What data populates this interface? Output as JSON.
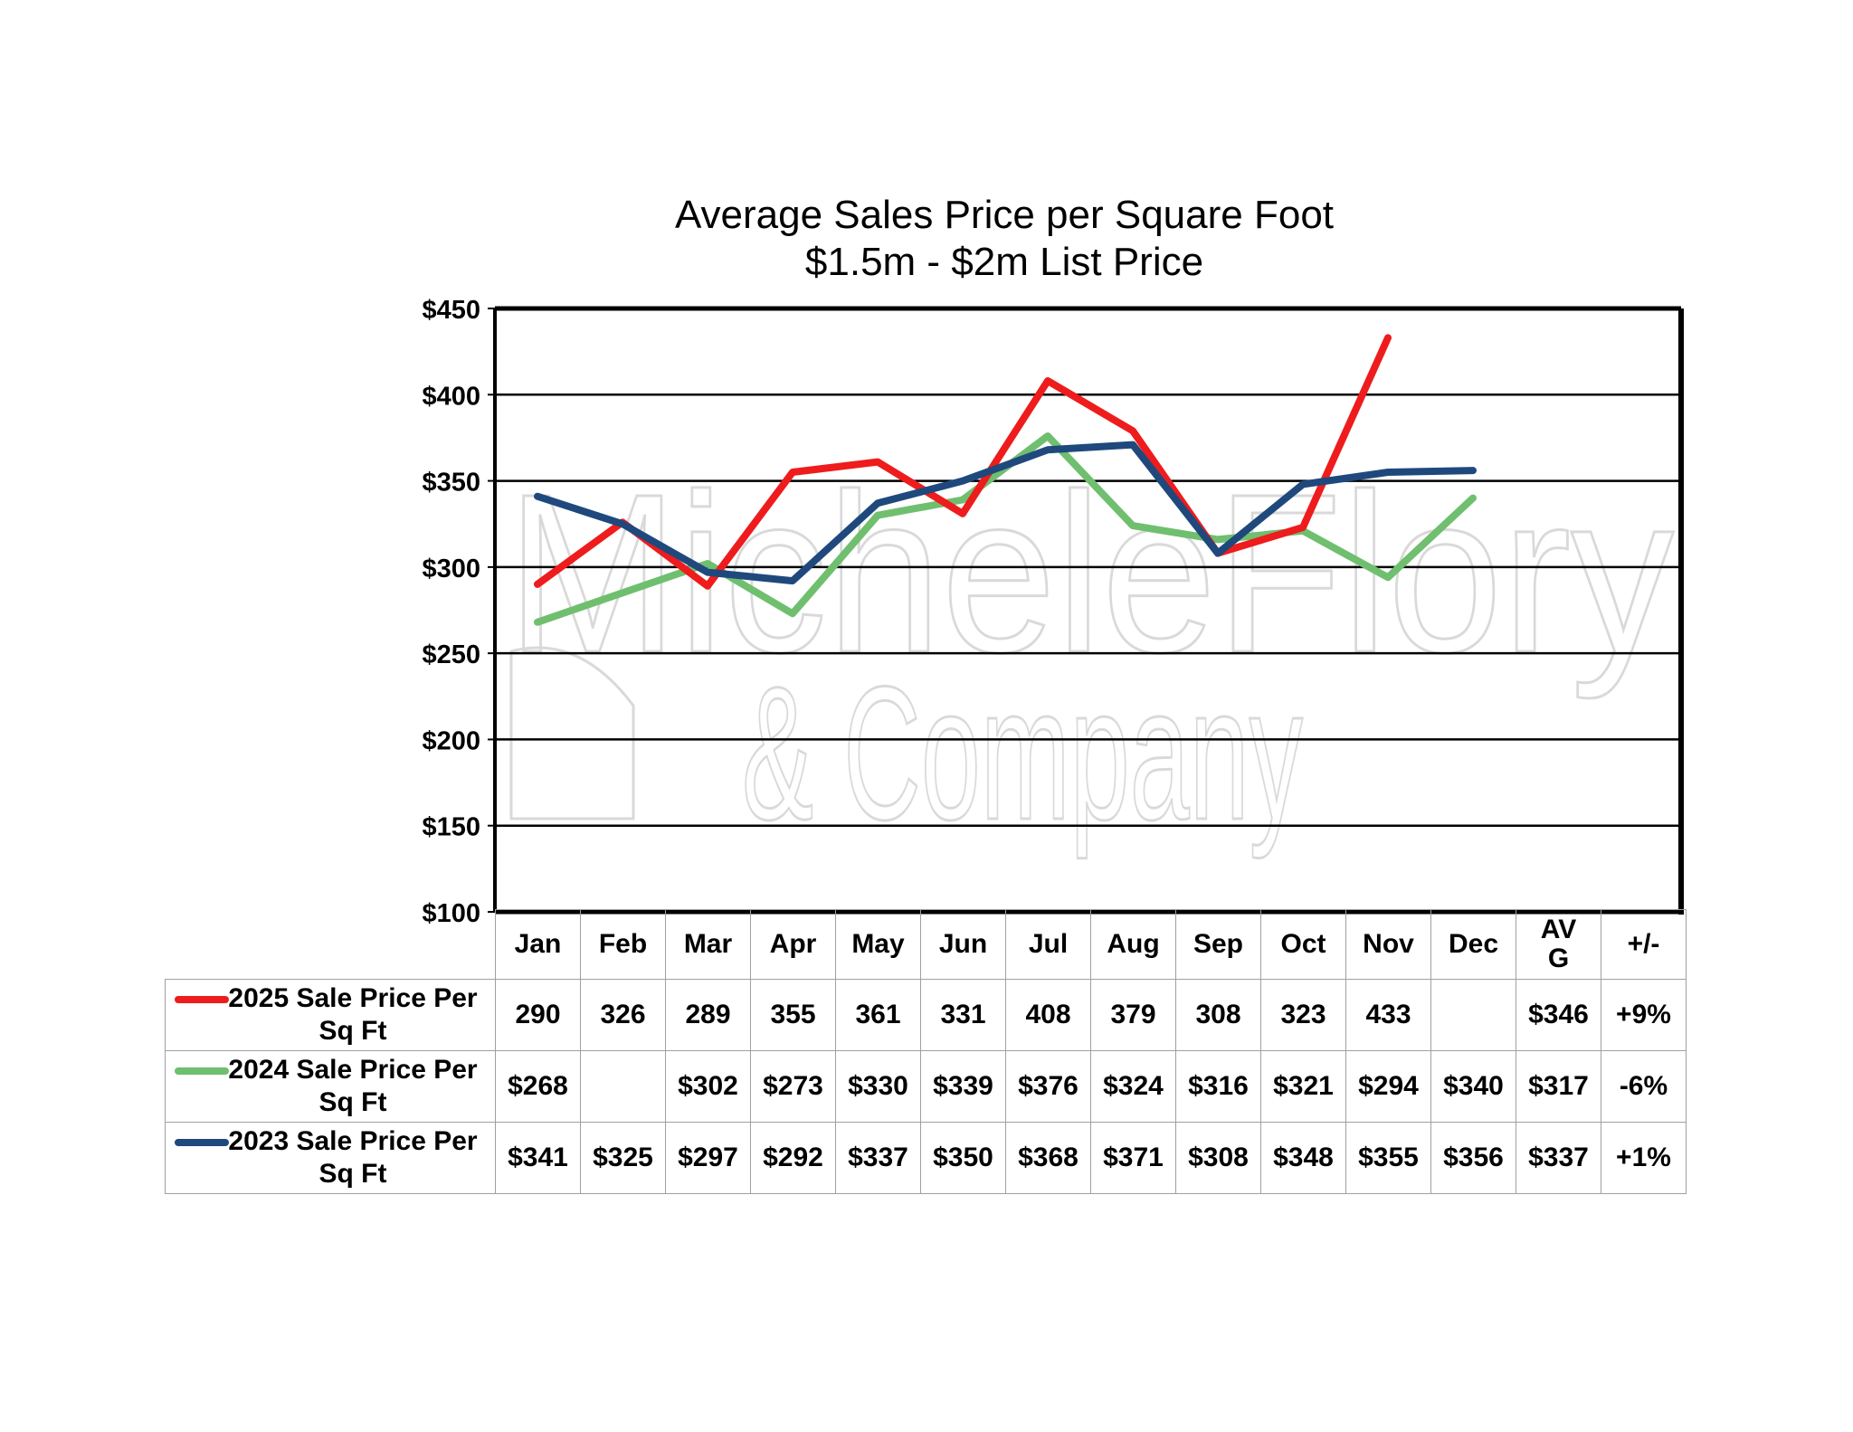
{
  "chart_data": {
    "type": "line",
    "title": "Average Sales Price per Square Foot",
    "subtitle": "$1.5m - $2m List Price",
    "categories": [
      "Jan",
      "Feb",
      "Mar",
      "Apr",
      "May",
      "Jun",
      "Jul",
      "Aug",
      "Sep",
      "Oct",
      "Nov",
      "Dec"
    ],
    "ylim": [
      100,
      450
    ],
    "yticks": [
      100,
      150,
      200,
      250,
      300,
      350,
      400,
      450
    ],
    "ytick_labels": [
      "$100",
      "$150",
      "$200",
      "$250",
      "$300",
      "$350",
      "$400",
      "$450"
    ],
    "grid": true,
    "series": [
      {
        "name": "2025 Sale Price Per Sq Ft",
        "color": "#ee1c1c",
        "values": [
          290,
          326,
          289,
          355,
          361,
          331,
          408,
          379,
          308,
          323,
          433,
          null
        ]
      },
      {
        "name": "2024 Sale Price Per Sq Ft",
        "color": "#6fbf6f",
        "values": [
          268,
          null,
          302,
          273,
          330,
          339,
          376,
          324,
          316,
          321,
          294,
          340
        ]
      },
      {
        "name": "2023 Sale Price Per Sq Ft",
        "color": "#1f497d",
        "values": [
          341,
          325,
          297,
          292,
          337,
          350,
          368,
          371,
          308,
          348,
          355,
          356
        ]
      }
    ]
  },
  "table": {
    "headers": [
      "Jan",
      "Feb",
      "Mar",
      "Apr",
      "May",
      "Jun",
      "Jul",
      "Aug",
      "Sep",
      "Oct",
      "Nov",
      "Dec",
      "AV G",
      "+/-"
    ],
    "rows": [
      {
        "label": "2025 Sale Price Per Sq Ft",
        "cells": [
          "290",
          "326",
          "289",
          "355",
          "361",
          "331",
          "408",
          "379",
          "308",
          "323",
          "433",
          "",
          "$346",
          "+9%"
        ]
      },
      {
        "label": "2024 Sale Price Per Sq Ft",
        "cells": [
          "$268",
          "",
          "$302",
          "$273",
          "$330",
          "$339",
          "$376",
          "$324",
          "$316",
          "$321",
          "$294",
          "$340",
          "$317",
          "-6%"
        ]
      },
      {
        "label": "2023 Sale Price Per Sq Ft",
        "cells": [
          "$341",
          "$325",
          "$297",
          "$292",
          "$337",
          "$350",
          "$368",
          "$371",
          "$308",
          "$348",
          "$355",
          "$356",
          "$337",
          "+1%"
        ]
      }
    ]
  },
  "watermark": {
    "line1": "MicheleFlory",
    "line2": "& Company"
  }
}
